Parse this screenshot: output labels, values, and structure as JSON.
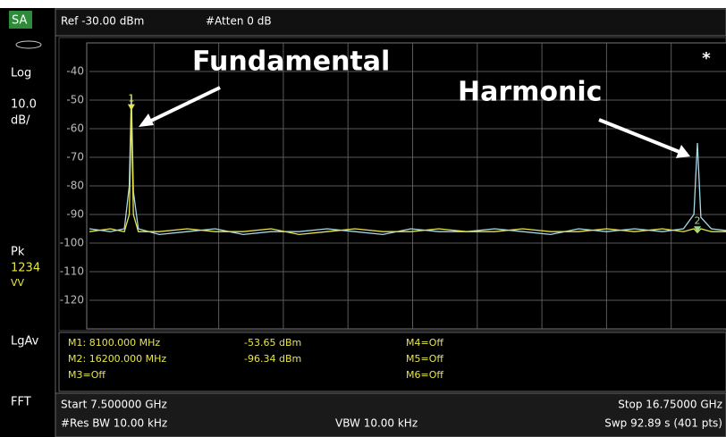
{
  "header": {
    "ref": "Ref -30.00 dBm",
    "atten": "#Atten 0 dB"
  },
  "sidebar": {
    "mode": "SA",
    "scale_type": "Log",
    "scale_value": "10.0",
    "scale_unit": "dB/",
    "detector": "Pk",
    "traces": "1234",
    "trace_state": "VV",
    "average": "LgAv",
    "sweep_type": "FFT"
  },
  "chart_data": {
    "type": "line",
    "xlim": [
      7.5,
      16.75
    ],
    "ylim": [
      -130,
      -30
    ],
    "yticks": [
      -40,
      -50,
      -60,
      -70,
      -80,
      -90,
      -100,
      -110,
      -120
    ],
    "grid": true,
    "flag": "*",
    "x": [
      7.5,
      7.8,
      8.0,
      8.07,
      8.1,
      8.13,
      8.2,
      8.5,
      8.9,
      9.3,
      9.7,
      10.1,
      10.5,
      10.9,
      11.3,
      11.7,
      12.1,
      12.5,
      12.9,
      13.3,
      13.7,
      14.1,
      14.5,
      14.9,
      15.3,
      15.7,
      16.0,
      16.15,
      16.2,
      16.25,
      16.4,
      16.75
    ],
    "series": [
      {
        "color": "#a8d8ea",
        "values": [
          -95,
          -96,
          -95,
          -80,
          -48,
          -82,
          -95,
          -97,
          -96,
          -95,
          -97,
          -96,
          -96,
          -95,
          -96,
          -97,
          -95,
          -96,
          -96,
          -95,
          -96,
          -97,
          -95,
          -96,
          -95,
          -96,
          -95,
          -90,
          -65,
          -91,
          -95,
          -96
        ]
      },
      {
        "color": "#e6e64a",
        "values": [
          -96,
          -95,
          -96,
          -90,
          -53.65,
          -90,
          -96,
          -96,
          -95,
          -96,
          -96,
          -95,
          -97,
          -96,
          -95,
          -96,
          -96,
          -95,
          -96,
          -96,
          -95,
          -96,
          -96,
          -95,
          -96,
          -95,
          -96,
          -95,
          -96.34,
          -95,
          -96,
          -96
        ]
      }
    ],
    "markers": [
      {
        "label": "1",
        "x": 8.1,
        "y": -53.65,
        "color": "#e6e64a"
      },
      {
        "label": "2",
        "x": 16.2,
        "y": -96.34,
        "color": "#8fe08f"
      }
    ],
    "annotations": [
      {
        "text": "Fundamental"
      },
      {
        "text": "Harmonic"
      }
    ]
  },
  "marker_table": {
    "freq": [
      "M1:  8100.000 MHz",
      "M2:  16200.000 MHz",
      "M3=Off"
    ],
    "amp": [
      "-53.65 dBm",
      "-96.34 dBm"
    ],
    "other": [
      "M4=Off",
      "M5=Off",
      "M6=Off"
    ]
  },
  "footer": {
    "start": "Start 7.500000 GHz",
    "stop": "Stop 16.75000 GHz",
    "rbw": "#Res BW 10.00 kHz",
    "vbw": "VBW 10.00 kHz",
    "sweep": "Swp 92.89  s (401 pts)"
  }
}
